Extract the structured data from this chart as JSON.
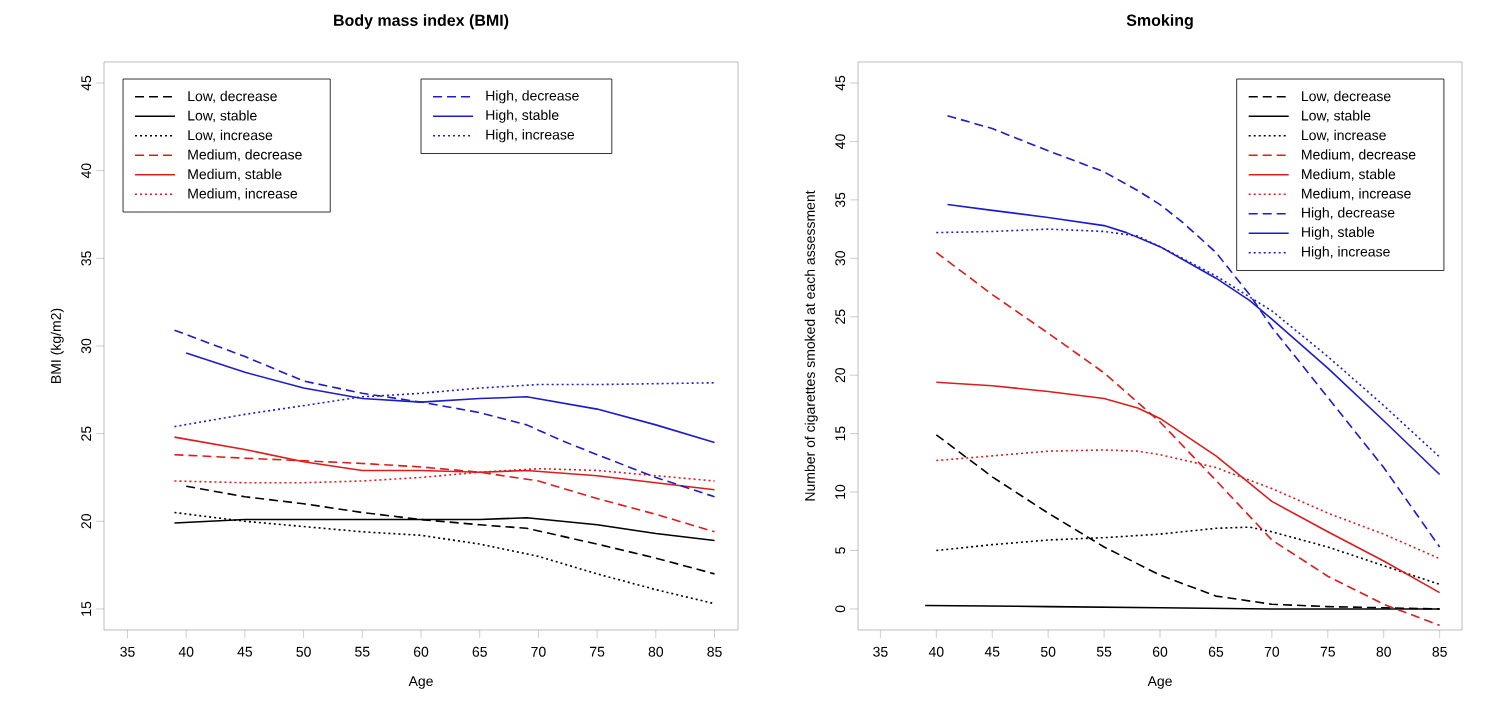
{
  "chart_data": [
    {
      "type": "line",
      "title": "Body mass index (BMI)",
      "xlabel": "Age",
      "ylabel": "BMI (kg/m2)",
      "xlim": [
        33,
        87
      ],
      "ylim": [
        13.8,
        46.2
      ],
      "xticks": [
        35,
        40,
        45,
        50,
        55,
        60,
        65,
        70,
        75,
        80,
        85
      ],
      "yticks": [
        15,
        20,
        25,
        30,
        35,
        40,
        45
      ],
      "legend": "top left",
      "series": [
        {
          "name": "Low, decrease",
          "color": "#000000",
          "line_style": "dashed",
          "x": [
            40,
            45,
            50,
            55,
            60,
            65,
            69,
            75,
            80,
            85
          ],
          "values": [
            22.0,
            21.4,
            21.0,
            20.5,
            20.1,
            19.8,
            19.6,
            18.7,
            17.9,
            17.0
          ]
        },
        {
          "name": "Low, stable",
          "color": "#000000",
          "line_style": "solid",
          "x": [
            39,
            45,
            50,
            55,
            60,
            65,
            69,
            75,
            80,
            85
          ],
          "values": [
            19.9,
            20.1,
            20.1,
            20.1,
            20.1,
            20.1,
            20.2,
            19.8,
            19.3,
            18.9
          ]
        },
        {
          "name": "Low, increase",
          "color": "#000000",
          "line_style": "dotted",
          "x": [
            39,
            45,
            50,
            55,
            60,
            65,
            70,
            75,
            80,
            85
          ],
          "values": [
            20.5,
            20.0,
            19.7,
            19.4,
            19.2,
            18.7,
            18.0,
            17.0,
            16.1,
            15.3
          ]
        },
        {
          "name": "Medium, decrease",
          "color": "#dd1c1c",
          "line_style": "dashed",
          "x": [
            39,
            45,
            55,
            60,
            65,
            70,
            75,
            80,
            85
          ],
          "values": [
            23.8,
            23.6,
            23.3,
            23.1,
            22.8,
            22.3,
            21.3,
            20.4,
            19.4
          ]
        },
        {
          "name": "Medium, stable",
          "color": "#dd1c1c",
          "line_style": "solid",
          "x": [
            39,
            45,
            50,
            55,
            60,
            65,
            69,
            75,
            85
          ],
          "values": [
            24.8,
            24.1,
            23.4,
            22.9,
            22.9,
            22.8,
            22.9,
            22.6,
            21.8
          ]
        },
        {
          "name": "Medium, increase",
          "color": "#dd1c1c",
          "line_style": "dotted",
          "x": [
            39,
            45,
            50,
            55,
            60,
            65,
            70,
            75,
            80,
            85
          ],
          "values": [
            22.3,
            22.2,
            22.2,
            22.3,
            22.5,
            22.8,
            23.0,
            22.9,
            22.6,
            22.3
          ]
        },
        {
          "name": "High, decrease",
          "color": "#1c1ccc",
          "line_style": "dashed",
          "x": [
            39,
            45,
            50,
            55,
            60,
            65,
            69,
            72,
            75,
            80,
            85
          ],
          "values": [
            30.9,
            29.4,
            28.0,
            27.3,
            26.8,
            26.2,
            25.5,
            24.6,
            23.8,
            22.5,
            21.4
          ]
        },
        {
          "name": "High, stable",
          "color": "#1c1ccc",
          "line_style": "solid",
          "x": [
            40,
            45,
            50,
            55,
            60,
            65,
            69,
            75,
            80,
            85
          ],
          "values": [
            29.6,
            28.5,
            27.6,
            27.0,
            26.8,
            27.0,
            27.1,
            26.4,
            25.5,
            24.5
          ]
        },
        {
          "name": "High, increase",
          "color": "#1c1ccc",
          "line_style": "dotted",
          "x": [
            39,
            45,
            50,
            55,
            60,
            65,
            70,
            75,
            85
          ],
          "values": [
            25.4,
            26.1,
            26.6,
            27.1,
            27.3,
            27.6,
            27.8,
            27.8,
            27.9
          ]
        }
      ]
    },
    {
      "type": "line",
      "title": "Smoking",
      "xlabel": "Age",
      "ylabel": "Number of cigarettes smoked at each assessment",
      "xlim": [
        33,
        87
      ],
      "ylim": [
        -1.8,
        46.8
      ],
      "xticks": [
        35,
        40,
        45,
        50,
        55,
        60,
        65,
        70,
        75,
        80,
        85
      ],
      "yticks": [
        0,
        5,
        10,
        15,
        20,
        25,
        30,
        35,
        40,
        45
      ],
      "legend": "top right",
      "series": [
        {
          "name": "Low, decrease",
          "color": "#000000",
          "line_style": "dashed",
          "x": [
            40,
            45,
            50,
            55,
            60,
            65,
            70,
            75,
            85
          ],
          "values": [
            14.9,
            11.3,
            8.2,
            5.3,
            2.9,
            1.1,
            0.4,
            0.2,
            0
          ]
        },
        {
          "name": "Low, stable",
          "color": "#000000",
          "line_style": "solid",
          "x": [
            39,
            50,
            60,
            70,
            85
          ],
          "values": [
            0.3,
            0.2,
            0.1,
            0,
            0
          ]
        },
        {
          "name": "Low, increase",
          "color": "#000000",
          "line_style": "dotted",
          "x": [
            40,
            45,
            50,
            55,
            60,
            65,
            68,
            70,
            75,
            80,
            85
          ],
          "values": [
            5.0,
            5.5,
            5.9,
            6.1,
            6.4,
            6.9,
            7.0,
            6.6,
            5.3,
            3.7,
            2.1
          ]
        },
        {
          "name": "Medium, decrease",
          "color": "#dd1c1c",
          "line_style": "dashed",
          "x": [
            40,
            45,
            50,
            55,
            60,
            65,
            70,
            75,
            80,
            85
          ],
          "values": [
            30.5,
            26.9,
            23.6,
            20.2,
            16.0,
            11.0,
            5.9,
            2.8,
            0.4,
            -1.4
          ]
        },
        {
          "name": "Medium, stable",
          "color": "#dd1c1c",
          "line_style": "solid",
          "x": [
            40,
            45,
            50,
            55,
            58,
            60,
            65,
            70,
            75,
            80,
            85
          ],
          "values": [
            19.4,
            19.1,
            18.6,
            18.0,
            17.2,
            16.3,
            13.1,
            9.2,
            6.6,
            4.1,
            1.4
          ]
        },
        {
          "name": "Medium, increase",
          "color": "#dd1c1c",
          "line_style": "dotted",
          "x": [
            40,
            45,
            50,
            55,
            58,
            60,
            65,
            70,
            75,
            80,
            85
          ],
          "values": [
            12.7,
            13.1,
            13.5,
            13.6,
            13.5,
            13.2,
            12.1,
            10.3,
            8.2,
            6.4,
            4.3
          ]
        },
        {
          "name": "High, decrease",
          "color": "#1c1ccc",
          "line_style": "dashed",
          "x": [
            41,
            45,
            50,
            55,
            58,
            60,
            62,
            65,
            68,
            70,
            75,
            80,
            85
          ],
          "values": [
            42.2,
            41.1,
            39.2,
            37.4,
            35.8,
            34.6,
            33.1,
            30.5,
            26.9,
            24.1,
            18.1,
            12.1,
            5.3
          ]
        },
        {
          "name": "High, stable",
          "color": "#1c1ccc",
          "line_style": "solid",
          "x": [
            41,
            45,
            50,
            55,
            57,
            60,
            65,
            68,
            70,
            75,
            80,
            85
          ],
          "values": [
            34.6,
            34.1,
            33.5,
            32.8,
            32.2,
            31.0,
            28.3,
            26.4,
            24.8,
            20.6,
            16.1,
            11.5
          ]
        },
        {
          "name": "High, increase",
          "color": "#1c1ccc",
          "line_style": "dotted",
          "x": [
            40,
            45,
            50,
            55,
            58,
            60,
            65,
            70,
            75,
            80,
            85
          ],
          "values": [
            32.2,
            32.3,
            32.5,
            32.3,
            31.9,
            31.0,
            28.5,
            25.5,
            21.6,
            17.4,
            13.0
          ]
        }
      ]
    }
  ]
}
